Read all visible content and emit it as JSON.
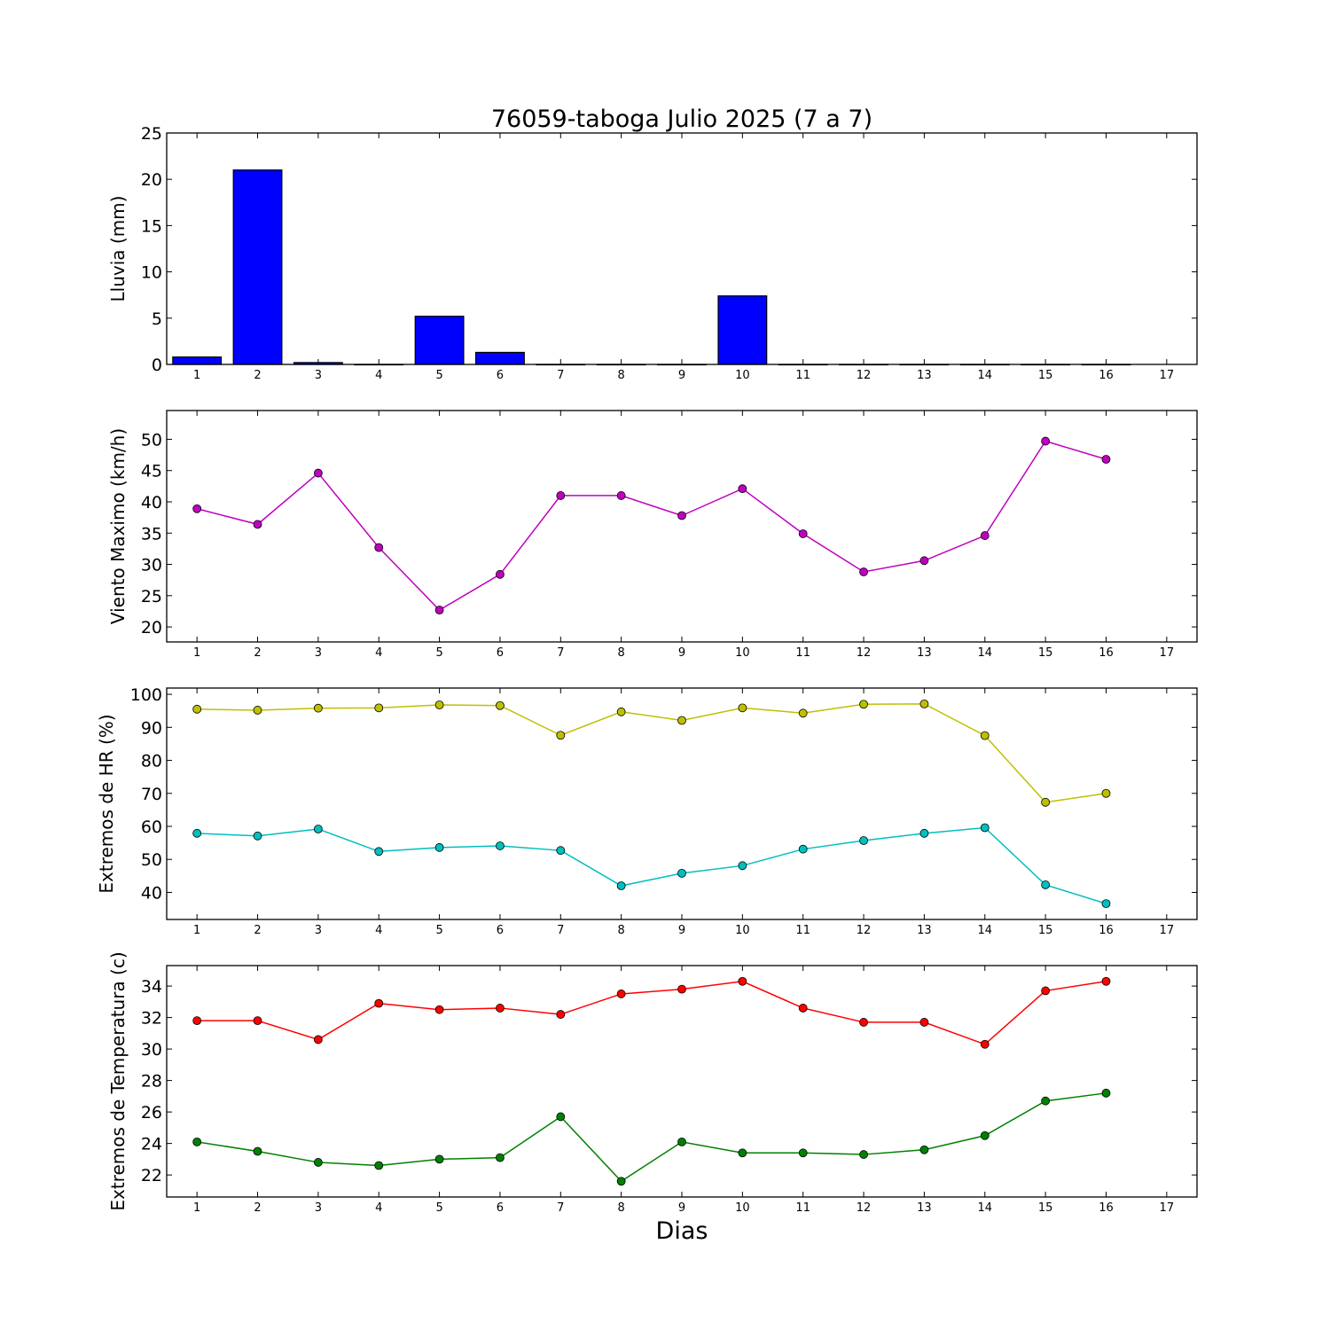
{
  "figure": {
    "title": "76059-taboga Julio 2025  (7 a 7)",
    "xlabel": "Dias"
  },
  "chart_data": [
    {
      "type": "bar",
      "ylabel": "Lluvia (mm)",
      "ylim": [
        0,
        25
      ],
      "yticks": [
        0,
        5,
        10,
        15,
        20,
        25
      ],
      "xticks": [
        1,
        2,
        3,
        4,
        5,
        6,
        7,
        8,
        9,
        10,
        11,
        12,
        13,
        14,
        15,
        16,
        17
      ],
      "xlim": [
        0.5,
        17.5
      ],
      "color": "#0000ff",
      "categories": [
        1,
        2,
        3,
        4,
        5,
        6,
        7,
        8,
        9,
        10,
        11,
        12,
        13,
        14,
        15,
        16
      ],
      "values": [
        0.8,
        21.0,
        0.2,
        0.0,
        5.2,
        1.3,
        0.0,
        0.0,
        0.0,
        7.4,
        0.0,
        0.0,
        0.0,
        0.0,
        0.0,
        0.0
      ]
    },
    {
      "type": "line",
      "ylabel": "Viento Maximo (km/h)",
      "ylim": [
        17.6,
        54.6
      ],
      "yticks": [
        20,
        25,
        30,
        35,
        40,
        45,
        50
      ],
      "xticks": [
        1,
        2,
        3,
        4,
        5,
        6,
        7,
        8,
        9,
        10,
        11,
        12,
        13,
        14,
        15,
        16,
        17
      ],
      "xlim": [
        0.5,
        17.5
      ],
      "x": [
        1,
        2,
        3,
        4,
        5,
        6,
        7,
        8,
        9,
        10,
        11,
        12,
        13,
        14,
        15,
        16
      ],
      "series": [
        {
          "color": "#bf00bf",
          "values": [
            38.9,
            36.4,
            44.6,
            32.7,
            22.7,
            28.4,
            41.0,
            41.0,
            37.8,
            42.1,
            34.9,
            28.8,
            30.6,
            34.6,
            49.7,
            46.8
          ]
        }
      ]
    },
    {
      "type": "line",
      "ylabel": "Extremos de HR (%)",
      "ylim": [
        31.8,
        101.9
      ],
      "yticks": [
        40,
        50,
        60,
        70,
        80,
        90,
        100
      ],
      "xticks": [
        1,
        2,
        3,
        4,
        5,
        6,
        7,
        8,
        9,
        10,
        11,
        12,
        13,
        14,
        15,
        16,
        17
      ],
      "xlim": [
        0.5,
        17.5
      ],
      "x": [
        1,
        2,
        3,
        4,
        5,
        6,
        7,
        8,
        9,
        10,
        11,
        12,
        13,
        14,
        15,
        16
      ],
      "series": [
        {
          "color": "#bfbf00",
          "values": [
            95.5,
            95.2,
            95.8,
            95.9,
            96.8,
            96.6,
            87.6,
            94.7,
            92.1,
            95.9,
            94.3,
            97.0,
            97.1,
            87.5,
            67.3,
            70.0
          ]
        },
        {
          "color": "#00bfbf",
          "values": [
            57.9,
            57.1,
            59.2,
            52.4,
            53.6,
            54.1,
            52.7,
            42.0,
            45.8,
            48.1,
            53.1,
            55.7,
            57.9,
            59.6,
            42.3,
            36.6
          ]
        }
      ]
    },
    {
      "type": "line",
      "ylabel": "Extremos de Temperatura (c)",
      "ylim": [
        20.6,
        35.3
      ],
      "yticks": [
        22,
        24,
        26,
        28,
        30,
        32,
        34
      ],
      "xticks": [
        1,
        2,
        3,
        4,
        5,
        6,
        7,
        8,
        9,
        10,
        11,
        12,
        13,
        14,
        15,
        16,
        17
      ],
      "xlim": [
        0.5,
        17.5
      ],
      "x": [
        1,
        2,
        3,
        4,
        5,
        6,
        7,
        8,
        9,
        10,
        11,
        12,
        13,
        14,
        15,
        16
      ],
      "series": [
        {
          "color": "#ff0000",
          "values": [
            31.8,
            31.8,
            30.6,
            32.9,
            32.5,
            32.6,
            32.2,
            33.5,
            33.8,
            34.3,
            32.6,
            31.7,
            31.7,
            30.3,
            33.7,
            34.3
          ]
        },
        {
          "color": "#008000",
          "values": [
            24.1,
            23.5,
            22.8,
            22.6,
            23.0,
            23.1,
            25.7,
            21.6,
            24.1,
            23.4,
            23.4,
            23.3,
            23.6,
            24.5,
            26.7,
            27.2
          ]
        }
      ]
    }
  ]
}
